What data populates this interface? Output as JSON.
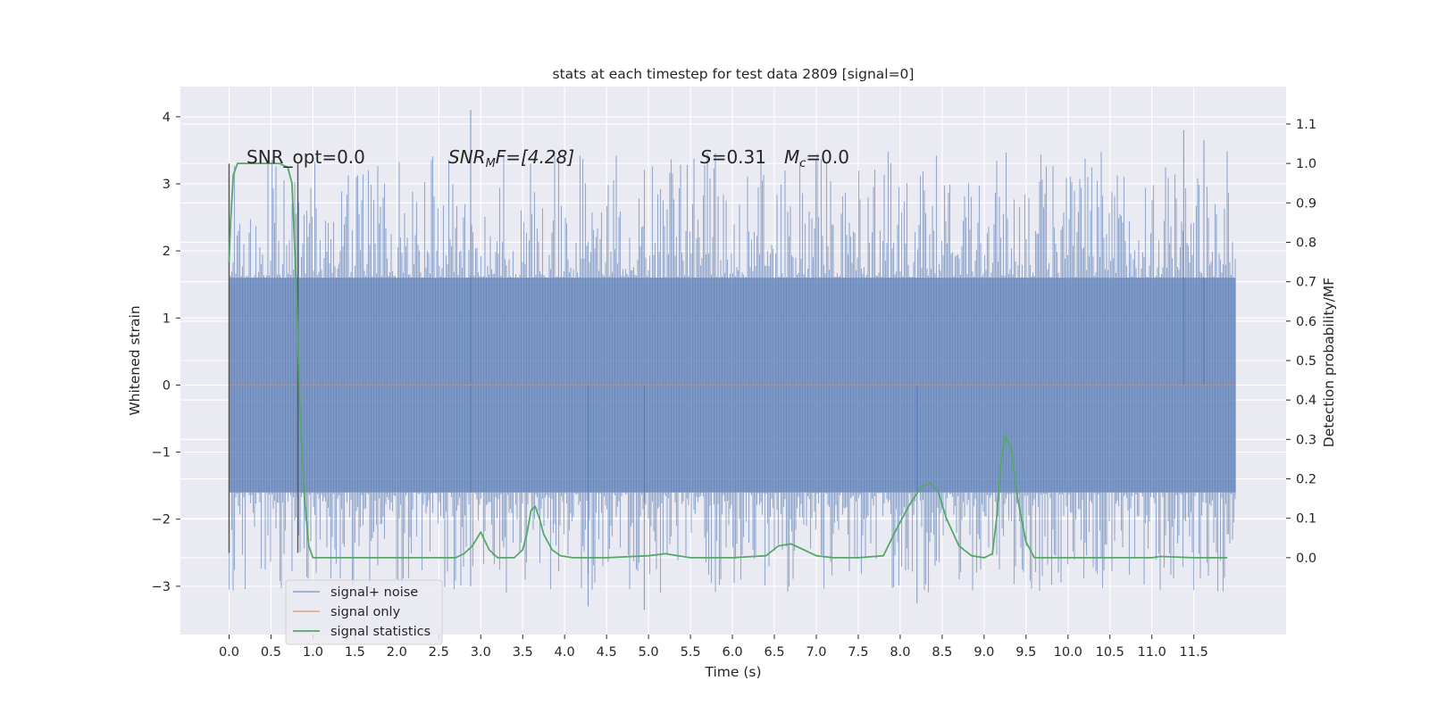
{
  "chart_data": {
    "type": "line",
    "title": "stats at each timestep for test data 2809 [signal=0]",
    "xlabel": "Time (s)",
    "ylabel": "Whitened strain",
    "y2label": "Detection probability/MF",
    "xlim": [
      -0.58,
      12.6
    ],
    "ylim": [
      -3.72,
      4.45
    ],
    "y2lim": [
      -0.195,
      1.195
    ],
    "x_ticks": [
      "0.0",
      "0.5",
      "1.0",
      "1.5",
      "2.0",
      "2.5",
      "3.0",
      "3.5",
      "4.0",
      "4.5",
      "5.0",
      "5.5",
      "6.0",
      "6.5",
      "7.0",
      "7.5",
      "8.0",
      "8.5",
      "9.0",
      "9.5",
      "10.0",
      "10.5",
      "11.0",
      "11.5"
    ],
    "y_ticks": [
      "4",
      "3",
      "2",
      "1",
      "0",
      "−1",
      "−2",
      "−3"
    ],
    "y2_ticks": [
      "1.1",
      "1.0",
      "0.9",
      "0.8",
      "0.7",
      "0.6",
      "0.5",
      "0.4",
      "0.3",
      "0.2",
      "0.1",
      "0.0"
    ],
    "grid": true,
    "legend_position": "lower-left",
    "annotations": {
      "snr_opt": "SNR_opt=0.0",
      "snr_mf_sym": "SNR",
      "snr_mf_sub": "M",
      "snr_mf_rest": "F=[4.28]",
      "s_sym": "S",
      "s_val": "=0.31",
      "mc_sym": "M",
      "mc_sub": "c",
      "mc_val": "=0.0"
    },
    "series": [
      {
        "name": "signal+ noise",
        "color": "#4c72b0",
        "kind": "noise",
        "x_range": [
          0.0,
          12.0
        ],
        "core_band": [
          -1.6,
          1.6
        ],
        "notable_peaks": [
          [
            2.88,
            4.1
          ],
          [
            11.38,
            3.8
          ],
          [
            11.62,
            3.65
          ],
          [
            2.88,
            -3.0
          ],
          [
            4.28,
            -3.3
          ],
          [
            4.95,
            -3.35
          ],
          [
            8.2,
            -3.25
          ]
        ]
      },
      {
        "name": "signal only",
        "color": "#dd8452",
        "x": [
          0.0,
          12.0
        ],
        "y": [
          0.0,
          0.0
        ]
      },
      {
        "name": "signal statistics",
        "color": "#55a868",
        "axis": "right",
        "x": [
          0.0,
          0.02,
          0.05,
          0.1,
          0.15,
          0.2,
          0.3,
          0.4,
          0.5,
          0.6,
          0.7,
          0.75,
          0.8,
          0.85,
          0.9,
          0.95,
          1.0,
          1.1,
          1.5,
          2.0,
          2.5,
          2.7,
          2.8,
          2.9,
          3.0,
          3.1,
          3.2,
          3.4,
          3.5,
          3.55,
          3.6,
          3.65,
          3.7,
          3.75,
          3.85,
          3.95,
          4.1,
          4.5,
          5.0,
          5.2,
          5.5,
          6.0,
          6.4,
          6.55,
          6.7,
          6.85,
          7.0,
          7.2,
          7.5,
          7.8,
          7.95,
          8.1,
          8.25,
          8.35,
          8.45,
          8.55,
          8.7,
          8.85,
          9.0,
          9.1,
          9.15,
          9.2,
          9.25,
          9.32,
          9.4,
          9.5,
          9.6,
          10.0,
          10.5,
          11.0,
          11.1,
          11.5,
          11.9
        ],
        "y": [
          0.75,
          0.86,
          0.97,
          1.0,
          1.0,
          1.0,
          1.0,
          1.0,
          1.0,
          1.0,
          0.99,
          0.95,
          0.7,
          0.35,
          0.15,
          0.03,
          0.0,
          0.0,
          0.0,
          0.0,
          0.0,
          0.0,
          0.01,
          0.03,
          0.065,
          0.02,
          0.0,
          0.0,
          0.02,
          0.06,
          0.12,
          0.13,
          0.1,
          0.06,
          0.02,
          0.005,
          0.0,
          0.0,
          0.005,
          0.01,
          0.0,
          0.0,
          0.005,
          0.03,
          0.035,
          0.02,
          0.005,
          0.0,
          0.0,
          0.005,
          0.07,
          0.13,
          0.18,
          0.19,
          0.17,
          0.1,
          0.03,
          0.005,
          0.0,
          0.01,
          0.1,
          0.24,
          0.31,
          0.28,
          0.15,
          0.04,
          0.0,
          0.0,
          0.0,
          0.0,
          0.003,
          0.0,
          0.0
        ]
      }
    ],
    "markers": {
      "vertical_lines_x": [
        0.0,
        0.82
      ],
      "color": "#555555"
    }
  }
}
